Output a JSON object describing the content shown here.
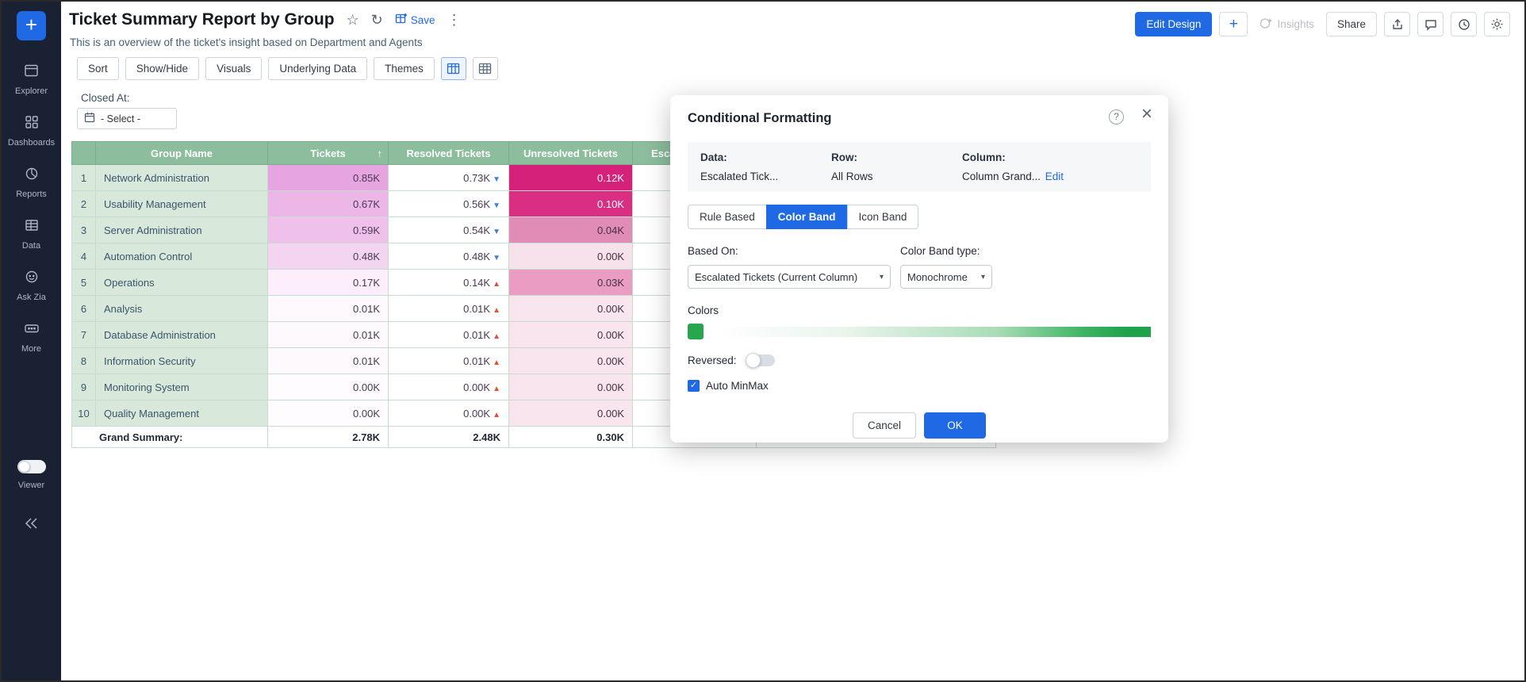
{
  "colors": {
    "accent_blue": "#1f6ae4",
    "sidebar_bg": "#1a2133",
    "table_header_green": "#8cbd9d",
    "row_green": "#d8e9dc",
    "band_green": "#1ea24a"
  },
  "sidebar": {
    "items": [
      {
        "label": "Explorer"
      },
      {
        "label": "Dashboards"
      },
      {
        "label": "Reports"
      },
      {
        "label": "Data"
      },
      {
        "label": "Ask Zia"
      },
      {
        "label": "More"
      }
    ],
    "viewer_label": "Viewer"
  },
  "header": {
    "title": "Ticket Summary Report by Group",
    "subtitle": "This is an overview of the ticket's insight based on Department and Agents",
    "save_label": "Save",
    "edit_design_label": "Edit Design",
    "plus_label": "+",
    "insights_label": "Insights",
    "share_label": "Share"
  },
  "toolbar": {
    "buttons": [
      "Sort",
      "Show/Hide",
      "Visuals",
      "Underlying Data",
      "Themes"
    ]
  },
  "filter": {
    "label": "Closed At:",
    "value": "- Select -"
  },
  "table": {
    "columns": [
      "Group Name",
      "Tickets",
      "Resolved Tickets",
      "Unresolved Tickets",
      "Escalated Tickets"
    ],
    "sort_indicator": "↑",
    "rows": [
      {
        "num": "1",
        "group": "Network Administration",
        "tickets": "0.85K",
        "tickets_bg": "#e6a4e1",
        "resolved": "0.73K",
        "resolved_dir": "down",
        "unresolved": "0.12K",
        "unres_bg": "#d52179",
        "unres_fg": "#ffffff"
      },
      {
        "num": "2",
        "group": "Usability Management",
        "tickets": "0.67K",
        "tickets_bg": "#ecb6e7",
        "resolved": "0.56K",
        "resolved_dir": "down",
        "unresolved": "0.10K",
        "unres_bg": "#d92e82",
        "unres_fg": "#ffffff"
      },
      {
        "num": "3",
        "group": "Server Administration",
        "tickets": "0.59K",
        "tickets_bg": "#efc0ea",
        "resolved": "0.54K",
        "resolved_dir": "down",
        "unresolved": "0.04K",
        "unres_bg": "#e18bb7",
        "unres_fg": "#43303d"
      },
      {
        "num": "4",
        "group": "Automation Control",
        "tickets": "0.48K",
        "tickets_bg": "#f4d5f1",
        "resolved": "0.48K",
        "resolved_dir": "down",
        "unresolved": "0.00K",
        "unres_bg": "#f7e2ec",
        "unres_fg": "#43303d"
      },
      {
        "num": "5",
        "group": "Operations",
        "tickets": "0.17K",
        "tickets_bg": "#fceefb",
        "resolved": "0.14K",
        "resolved_dir": "up",
        "unresolved": "0.03K",
        "unres_bg": "#ea9cc3",
        "unres_fg": "#43303d"
      },
      {
        "num": "6",
        "group": "Analysis",
        "tickets": "0.01K",
        "tickets_bg": "#fdf9fd",
        "resolved": "0.01K",
        "resolved_dir": "up",
        "unresolved": "0.00K",
        "unres_bg": "#f8e5ee",
        "unres_fg": "#43303d"
      },
      {
        "num": "7",
        "group": "Database Administration",
        "tickets": "0.01K",
        "tickets_bg": "#fdf9fd",
        "resolved": "0.01K",
        "resolved_dir": "up",
        "unresolved": "0.00K",
        "unres_bg": "#f8e5ee",
        "unres_fg": "#43303d"
      },
      {
        "num": "8",
        "group": "Information Security",
        "tickets": "0.01K",
        "tickets_bg": "#fdf9fd",
        "resolved": "0.01K",
        "resolved_dir": "up",
        "unresolved": "0.00K",
        "unres_bg": "#f8e5ee",
        "unres_fg": "#43303d"
      },
      {
        "num": "9",
        "group": "Monitoring System",
        "tickets": "0.00K",
        "tickets_bg": "#fefcfe",
        "resolved": "0.00K",
        "resolved_dir": "up",
        "unresolved": "0.00K",
        "unres_bg": "#f8e5ee",
        "unres_fg": "#43303d"
      },
      {
        "num": "10",
        "group": "Quality Management",
        "tickets": "0.00K",
        "tickets_bg": "#fefcfe",
        "resolved": "0.00K",
        "resolved_dir": "up",
        "unresolved": "0.00K",
        "unres_bg": "#f8e5ee",
        "unres_fg": "#43303d"
      }
    ],
    "summary": {
      "label": "Grand Summary:",
      "tickets": "2.78K",
      "resolved": "2.48K",
      "unresolved": "0.30K"
    }
  },
  "dialog": {
    "title": "Conditional Formatting",
    "info": {
      "data_label": "Data:",
      "data_value": "Escalated Tick...",
      "row_label": "Row:",
      "row_value": "All Rows",
      "column_label": "Column:",
      "column_value": "Column Grand...",
      "edit_label": "Edit"
    },
    "tabs": [
      "Rule Based",
      "Color Band",
      "Icon Band"
    ],
    "active_tab": "Color Band",
    "based_on_label": "Based On:",
    "based_on_value": "Escalated Tickets (Current Column)",
    "band_type_label": "Color Band type:",
    "band_type_value": "Monochrome",
    "colors_label": "Colors",
    "reversed_label": "Reversed:",
    "reversed_on": false,
    "auto_minmax_label": "Auto MinMax",
    "auto_minmax_checked": true,
    "help_glyph": "?",
    "cancel_label": "Cancel",
    "ok_label": "OK"
  }
}
